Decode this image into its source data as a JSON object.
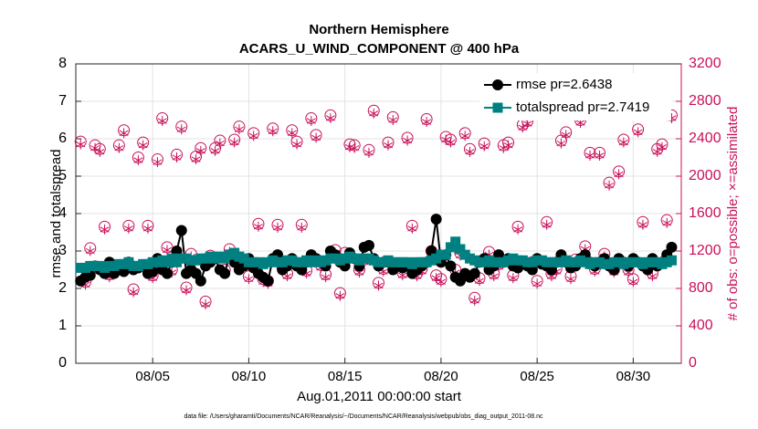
{
  "chart_data": {
    "type": "line",
    "title": [
      "Northern Hemisphere",
      "ACARS_U_WIND_COMPONENT @ 400 hPa"
    ],
    "xlabel": "Aug.01,2011 00:00:00 start",
    "ylabel": "rmse and totalspread",
    "y2label": "# of obs: o=possible; ×=assimilated",
    "footnote": "data file: /Users/gharamti/Documents/NCAR/Reanalysis/~/Documents/NCAR/Reanalysis/webpub/obs_diag_output_2011-08.nc",
    "grid": true,
    "legend": "upper right",
    "xlim": [
      1,
      32.5
    ],
    "xticks": [
      {
        "value": 5,
        "label": "08/05"
      },
      {
        "value": 10,
        "label": "08/10"
      },
      {
        "value": 15,
        "label": "08/15"
      },
      {
        "value": 20,
        "label": "08/20"
      },
      {
        "value": 25,
        "label": "08/25"
      },
      {
        "value": 30,
        "label": "08/30"
      }
    ],
    "ylim": [
      0,
      8
    ],
    "yticks": [
      0,
      1,
      2,
      3,
      4,
      5,
      6,
      7,
      8
    ],
    "y2lim": [
      0,
      3200
    ],
    "y2ticks": [
      0,
      400,
      800,
      1200,
      1600,
      2000,
      2400,
      2800,
      3200
    ],
    "y2color": "#c8105a",
    "x": [
      1.25,
      1.5,
      1.75,
      2,
      2.25,
      2.5,
      2.75,
      3,
      3.25,
      3.5,
      3.75,
      4,
      4.25,
      4.5,
      4.75,
      5,
      5.25,
      5.5,
      5.75,
      6,
      6.25,
      6.5,
      6.75,
      7,
      7.25,
      7.5,
      7.75,
      8,
      8.25,
      8.5,
      8.75,
      9,
      9.25,
      9.5,
      9.75,
      10,
      10.25,
      10.5,
      10.75,
      11,
      11.25,
      11.5,
      11.75,
      12,
      12.25,
      12.5,
      12.75,
      13,
      13.25,
      13.5,
      13.75,
      14,
      14.25,
      14.5,
      14.75,
      15,
      15.25,
      15.5,
      15.75,
      16,
      16.25,
      16.5,
      16.75,
      17,
      17.25,
      17.5,
      17.75,
      18,
      18.25,
      18.5,
      18.75,
      19,
      19.25,
      19.5,
      19.75,
      20,
      20.25,
      20.5,
      20.75,
      21,
      21.25,
      21.5,
      21.75,
      22,
      22.25,
      22.5,
      22.75,
      23,
      23.25,
      23.5,
      23.75,
      24,
      24.25,
      24.5,
      24.75,
      25,
      25.25,
      25.5,
      25.75,
      26,
      26.25,
      26.5,
      26.75,
      27,
      27.25,
      27.5,
      27.75,
      28,
      28.25,
      28.5,
      28.75,
      29,
      29.25,
      29.5,
      29.75,
      30,
      30.25,
      30.5,
      30.75,
      31,
      31.25,
      31.5,
      31.75,
      32
    ],
    "series": [
      {
        "name": "rmse pr=2.6438",
        "color": "#000000",
        "marker": "circle",
        "values": [
          2.2,
          2.3,
          2.35,
          2.6,
          2.5,
          2.4,
          2.7,
          2.4,
          2.6,
          2.45,
          2.7,
          2.5,
          2.55,
          2.6,
          2.4,
          2.45,
          2.8,
          2.5,
          2.4,
          2.7,
          3.0,
          3.55,
          2.4,
          2.5,
          2.4,
          2.2,
          2.6,
          2.7,
          2.8,
          2.5,
          2.4,
          2.9,
          2.7,
          2.5,
          2.6,
          2.8,
          2.55,
          2.4,
          2.3,
          2.2,
          2.8,
          2.9,
          2.5,
          2.6,
          2.8,
          2.6,
          2.5,
          2.7,
          2.9,
          2.8,
          2.7,
          2.6,
          3.0,
          2.9,
          2.7,
          2.6,
          2.95,
          2.8,
          2.6,
          3.1,
          3.15,
          2.8,
          2.6,
          2.7,
          2.7,
          2.5,
          2.6,
          2.55,
          2.6,
          2.4,
          2.5,
          2.6,
          2.7,
          3.0,
          3.85,
          2.7,
          2.9,
          2.6,
          2.3,
          2.2,
          2.4,
          2.3,
          2.4,
          2.7,
          2.8,
          2.5,
          2.6,
          2.9,
          2.7,
          2.8,
          2.6,
          2.55,
          2.7,
          2.6,
          2.5,
          2.8,
          2.65,
          2.6,
          2.5,
          2.7,
          2.9,
          2.7,
          2.55,
          2.6,
          2.8,
          2.9,
          2.7,
          2.6,
          2.7,
          2.8,
          2.6,
          2.5,
          2.8,
          2.7,
          2.6,
          2.8,
          2.7,
          2.6,
          2.5,
          2.8,
          2.6,
          2.7,
          2.9,
          3.1
        ]
      },
      {
        "name": "totalspread pr=2.7419",
        "color": "#008080",
        "marker": "square",
        "values": [
          2.55,
          2.55,
          2.6,
          2.6,
          2.6,
          2.55,
          2.6,
          2.6,
          2.65,
          2.65,
          2.7,
          2.6,
          2.6,
          2.65,
          2.65,
          2.7,
          2.7,
          2.75,
          2.7,
          2.8,
          2.7,
          2.8,
          2.8,
          2.75,
          2.75,
          2.8,
          2.8,
          2.85,
          2.8,
          2.85,
          2.8,
          2.9,
          2.95,
          2.85,
          2.8,
          2.7,
          2.7,
          2.7,
          2.65,
          2.7,
          2.75,
          2.7,
          2.7,
          2.75,
          2.75,
          2.7,
          2.7,
          2.75,
          2.7,
          2.75,
          2.7,
          2.75,
          2.8,
          2.8,
          2.75,
          2.8,
          2.85,
          2.8,
          2.75,
          2.8,
          2.8,
          2.75,
          2.7,
          2.7,
          2.75,
          2.7,
          2.7,
          2.7,
          2.7,
          2.65,
          2.7,
          2.7,
          2.7,
          2.75,
          2.8,
          2.9,
          2.9,
          3.1,
          3.25,
          3.05,
          2.9,
          2.8,
          2.75,
          2.7,
          2.7,
          2.75,
          2.7,
          2.7,
          2.7,
          2.75,
          2.8,
          2.75,
          2.75,
          2.7,
          2.7,
          2.75,
          2.75,
          2.7,
          2.7,
          2.7,
          2.7,
          2.75,
          2.7,
          2.7,
          2.75,
          2.7,
          2.65,
          2.7,
          2.7,
          2.65,
          2.65,
          2.7,
          2.7,
          2.65,
          2.7,
          2.7,
          2.7,
          2.65,
          2.7,
          2.7,
          2.7,
          2.65,
          2.7,
          2.75
        ]
      },
      {
        "color": "#c8105a",
        "marker": "open-circle",
        "axis": "y2",
        "values": [
          2370,
          870,
          1230,
          2330,
          2290,
          1460,
          950,
          1010,
          2330,
          2490,
          1470,
          790,
          2200,
          2360,
          1470,
          940,
          2180,
          2620,
          1240,
          1000,
          2230,
          2530,
          810,
          1170,
          2210,
          2300,
          660,
          1150,
          2300,
          2380,
          1000,
          1220,
          2390,
          2530,
          1100,
          930,
          2460,
          1490,
          900,
          880,
          2510,
          1480,
          1020,
          960,
          2490,
          2370,
          1480,
          990,
          2620,
          2440,
          1050,
          950,
          2650,
          1210,
          750,
          1180,
          2340,
          2330,
          1000,
          1110,
          2280,
          2700,
          860,
          1010,
          2360,
          2630,
          1050,
          970,
          2410,
          1470,
          960,
          1010,
          2610,
          1200,
          940,
          900,
          2420,
          2390,
          1000,
          1180,
          2460,
          2290,
          700,
          910,
          2350,
          1190,
          960,
          1060,
          2330,
          2360,
          940,
          1460,
          2550,
          2590,
          1080,
          880,
          2700,
          1510,
          960,
          1010,
          2380,
          2470,
          930,
          1110,
          2600,
          1250,
          2250,
          1010,
          2250,
          1170,
          1930,
          1000,
          2050,
          2390,
          1000,
          900,
          2500,
          1510,
          1020,
          960,
          2290,
          2340,
          1530,
          2650
        ]
      },
      {
        "color": "#c8105a",
        "marker": "asterisk",
        "axis": "y2",
        "values": [
          2340,
          840,
          1200,
          2300,
          2260,
          1430,
          920,
          980,
          2300,
          2460,
          1440,
          760,
          2170,
          2330,
          1440,
          910,
          2150,
          2590,
          1210,
          970,
          2200,
          2500,
          780,
          1140,
          2180,
          2270,
          630,
          1120,
          2270,
          2350,
          970,
          1190,
          2360,
          2500,
          1070,
          900,
          2430,
          1460,
          870,
          850,
          2480,
          1450,
          990,
          930,
          2460,
          2340,
          1450,
          960,
          2590,
          2410,
          1020,
          920,
          2620,
          1180,
          720,
          1150,
          2310,
          2300,
          970,
          1080,
          2250,
          2670,
          830,
          980,
          2330,
          2600,
          1020,
          940,
          2380,
          1440,
          930,
          980,
          2580,
          1170,
          910,
          870,
          2390,
          2360,
          970,
          1150,
          2430,
          2260,
          670,
          880,
          2320,
          1160,
          930,
          1030,
          2300,
          2330,
          910,
          1430,
          2520,
          2560,
          1050,
          850,
          2670,
          1480,
          930,
          980,
          2350,
          2440,
          900,
          1080,
          2570,
          1220,
          2220,
          980,
          2220,
          1140,
          1900,
          970,
          2020,
          2360,
          970,
          870,
          2470,
          1480,
          990,
          930,
          2260,
          2310,
          1500,
          2620
        ]
      }
    ]
  }
}
